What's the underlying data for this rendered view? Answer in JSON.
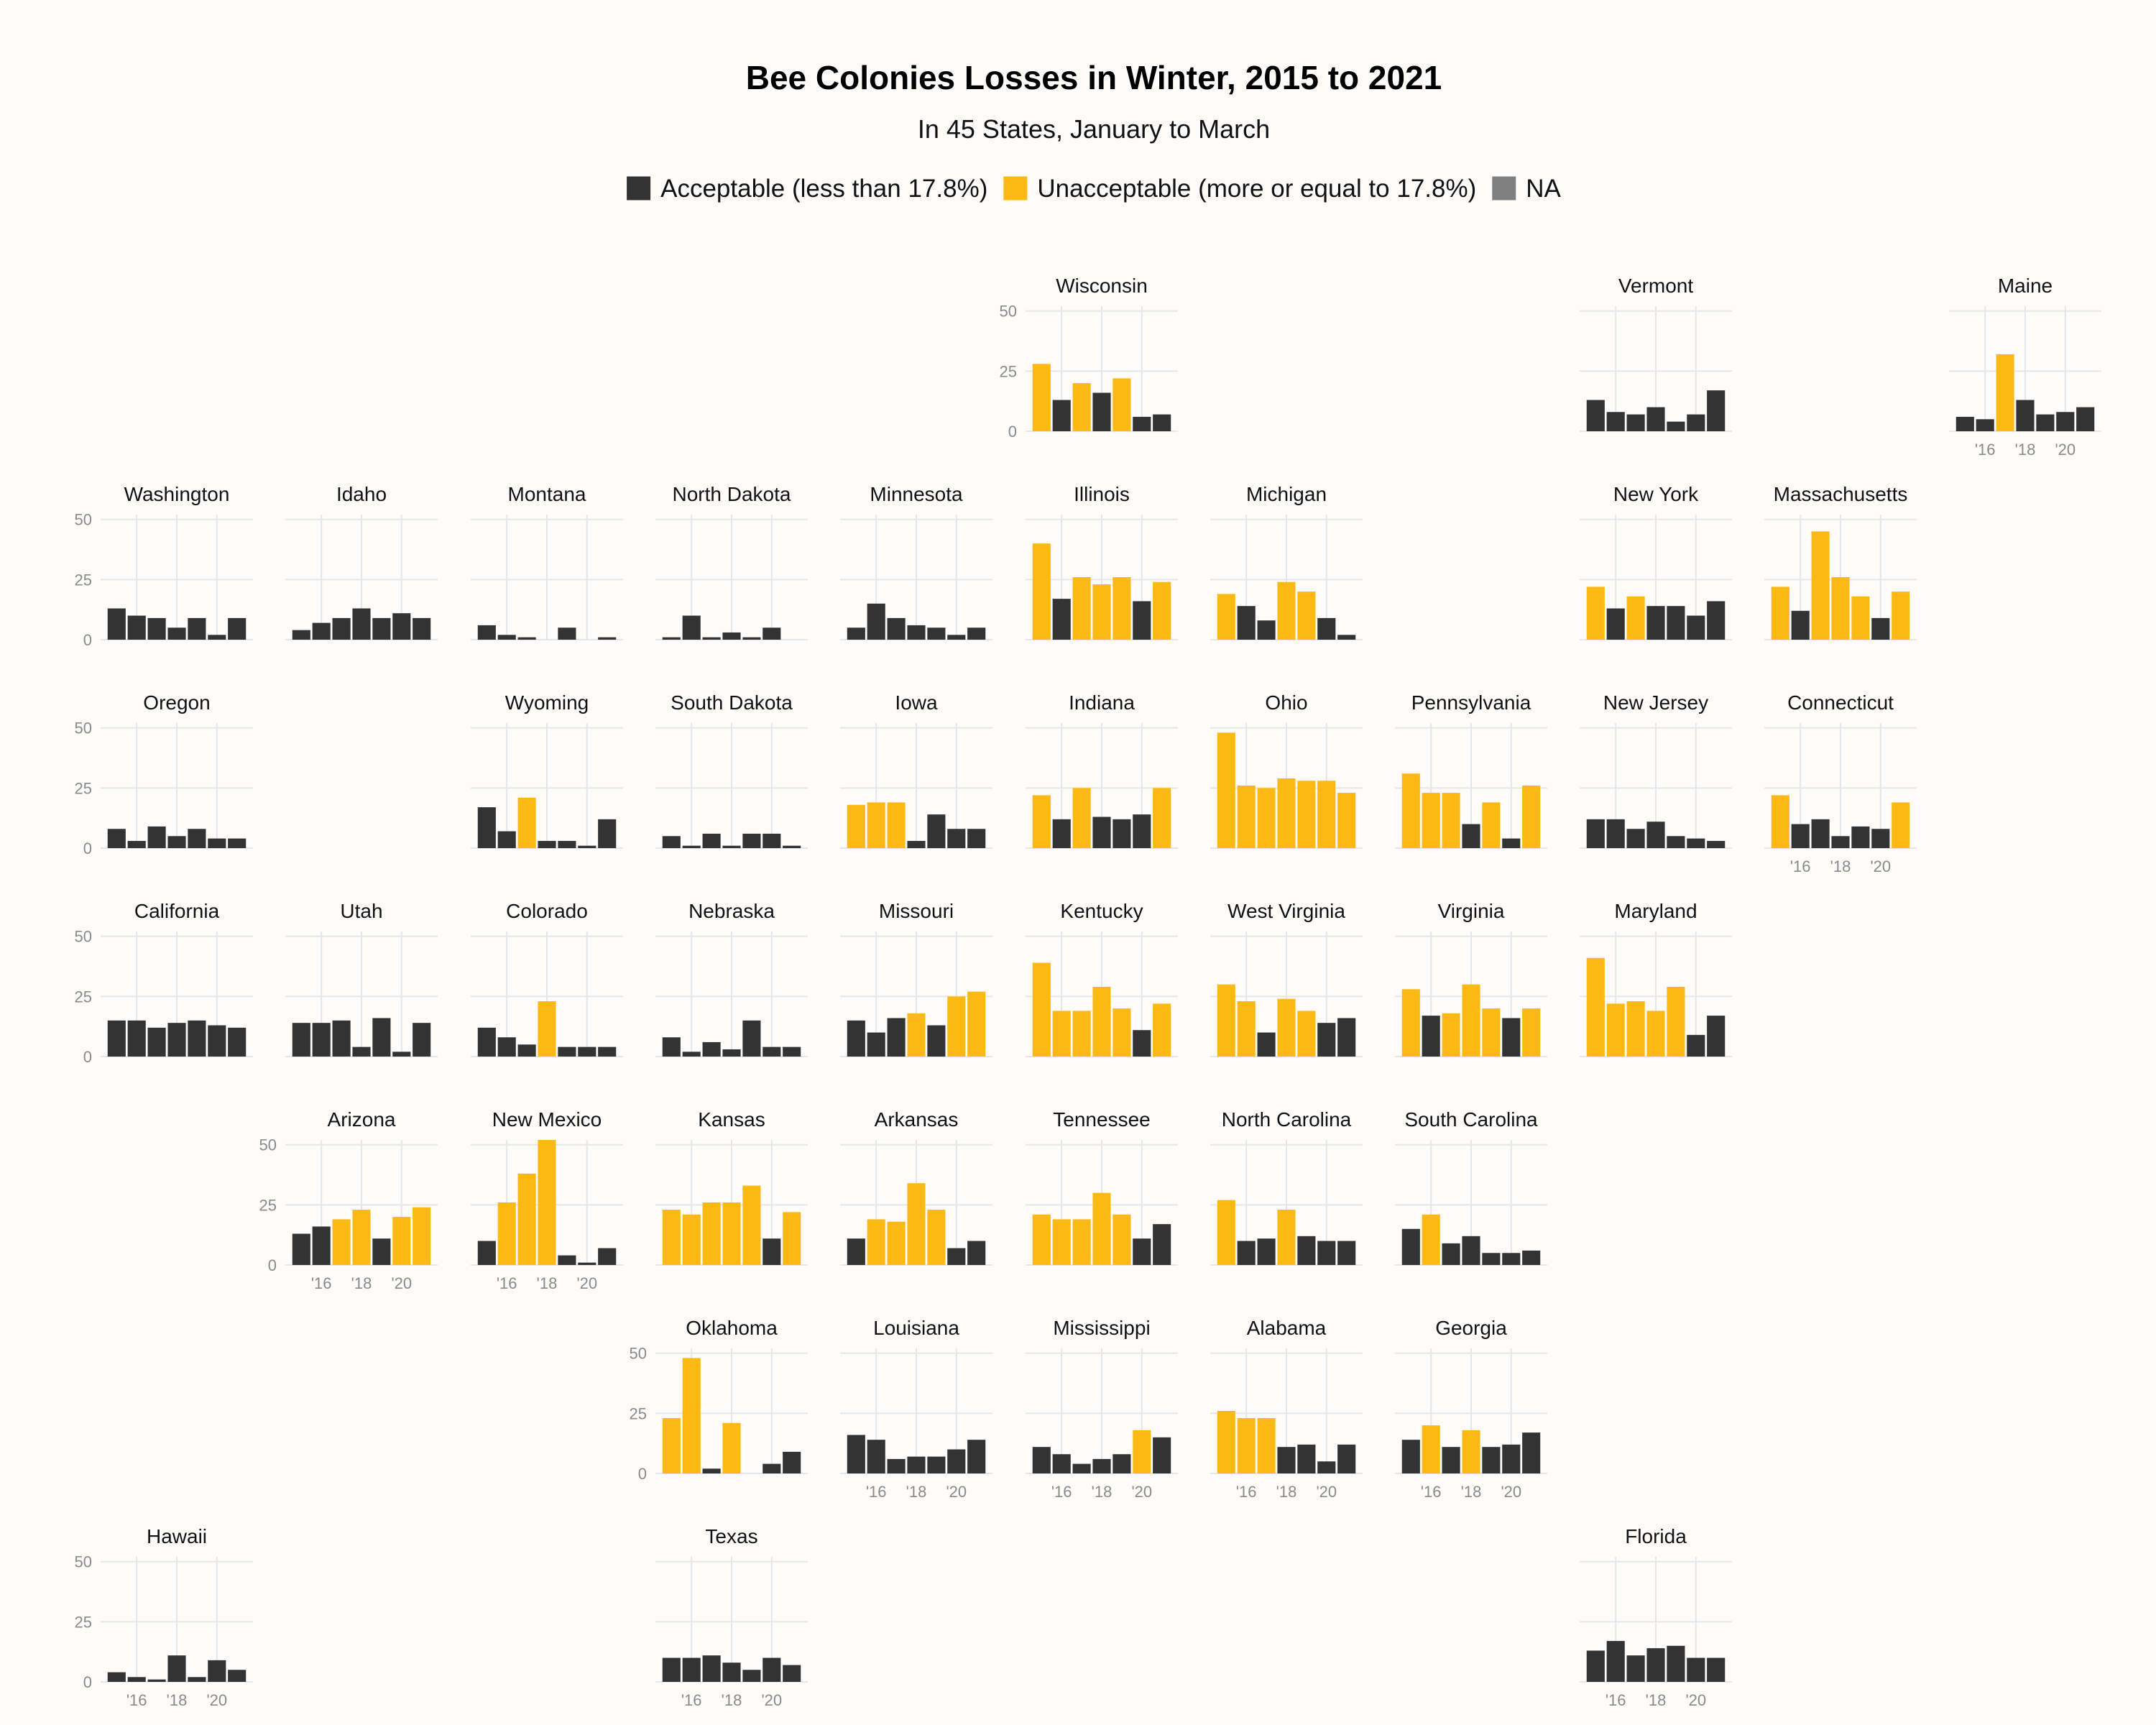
{
  "title": "Bee Colonies Losses in Winter, 2015 to 2021",
  "subtitle": "In 45 States, January to March",
  "legend": [
    {
      "label": "Acceptable (less than 17.8%)",
      "color": "#333333"
    },
    {
      "label": "Unacceptable (more or equal to 17.8%)",
      "color": "#FDB913"
    },
    {
      "label": "NA",
      "color": "#808080"
    }
  ],
  "chart_data": {
    "type": "bar",
    "threshold": 17.8,
    "years": [
      2015,
      2016,
      2017,
      2018,
      2019,
      2020,
      2021
    ],
    "x_tick_labels": [
      "'16",
      "'18",
      "'20"
    ],
    "y_ticks": [
      0,
      25,
      50
    ],
    "ylim": [
      0,
      52
    ],
    "colors": {
      "acceptable": "#333333",
      "unacceptable": "#FDB913",
      "na": "#808080"
    },
    "facets": [
      {
        "state": "Wisconsin",
        "row": 0,
        "col": 5,
        "values": [
          28,
          13,
          20,
          16,
          22,
          6,
          7
        ]
      },
      {
        "state": "Vermont",
        "row": 0,
        "col": 8,
        "values": [
          13,
          8,
          7,
          10,
          4,
          7,
          17
        ]
      },
      {
        "state": "Maine",
        "row": 0,
        "col": 10,
        "values": [
          6,
          5,
          32,
          13,
          7,
          8,
          10
        ]
      },
      {
        "state": "Washington",
        "row": 1,
        "col": 0,
        "values": [
          13,
          10,
          9,
          5,
          9,
          2,
          9
        ]
      },
      {
        "state": "Idaho",
        "row": 1,
        "col": 1,
        "values": [
          4,
          7,
          9,
          13,
          9,
          11,
          9
        ]
      },
      {
        "state": "Montana",
        "row": 1,
        "col": 2,
        "values": [
          6,
          2,
          1,
          null,
          5,
          null,
          1
        ]
      },
      {
        "state": "North Dakota",
        "row": 1,
        "col": 3,
        "values": [
          1,
          10,
          1,
          3,
          1,
          5,
          null
        ]
      },
      {
        "state": "Minnesota",
        "row": 1,
        "col": 4,
        "values": [
          5,
          15,
          9,
          6,
          5,
          2,
          5
        ]
      },
      {
        "state": "Illinois",
        "row": 1,
        "col": 5,
        "values": [
          40,
          17,
          26,
          23,
          26,
          16,
          24
        ]
      },
      {
        "state": "Michigan",
        "row": 1,
        "col": 6,
        "values": [
          19,
          14,
          8,
          24,
          20,
          9,
          2
        ]
      },
      {
        "state": "New York",
        "row": 1,
        "col": 8,
        "values": [
          22,
          13,
          18,
          14,
          14,
          10,
          16
        ]
      },
      {
        "state": "Massachusetts",
        "row": 1,
        "col": 9,
        "values": [
          22,
          12,
          45,
          26,
          18,
          9,
          20
        ]
      },
      {
        "state": "Oregon",
        "row": 2,
        "col": 0,
        "values": [
          8,
          3,
          9,
          5,
          8,
          4,
          4
        ]
      },
      {
        "state": "Wyoming",
        "row": 2,
        "col": 2,
        "values": [
          17,
          7,
          21,
          3,
          3,
          1,
          12
        ]
      },
      {
        "state": "South Dakota",
        "row": 2,
        "col": 3,
        "values": [
          5,
          1,
          6,
          1,
          6,
          6,
          1
        ]
      },
      {
        "state": "Iowa",
        "row": 2,
        "col": 4,
        "values": [
          18,
          19,
          19,
          3,
          14,
          8,
          8
        ]
      },
      {
        "state": "Indiana",
        "row": 2,
        "col": 5,
        "values": [
          22,
          12,
          25,
          13,
          12,
          14,
          25
        ]
      },
      {
        "state": "Ohio",
        "row": 2,
        "col": 6,
        "values": [
          48,
          26,
          25,
          29,
          28,
          28,
          23
        ]
      },
      {
        "state": "Pennsylvania",
        "row": 2,
        "col": 7,
        "values": [
          31,
          23,
          23,
          10,
          19,
          4,
          26
        ]
      },
      {
        "state": "New Jersey",
        "row": 2,
        "col": 8,
        "values": [
          12,
          12,
          8,
          11,
          5,
          4,
          3
        ]
      },
      {
        "state": "Connecticut",
        "row": 2,
        "col": 9,
        "values": [
          22,
          10,
          12,
          5,
          9,
          8,
          19
        ]
      },
      {
        "state": "California",
        "row": 3,
        "col": 0,
        "values": [
          15,
          15,
          12,
          14,
          15,
          13,
          12
        ]
      },
      {
        "state": "Utah",
        "row": 3,
        "col": 1,
        "values": [
          14,
          14,
          15,
          4,
          16,
          2,
          14
        ]
      },
      {
        "state": "Colorado",
        "row": 3,
        "col": 2,
        "values": [
          12,
          8,
          5,
          23,
          4,
          4,
          4
        ]
      },
      {
        "state": "Nebraska",
        "row": 3,
        "col": 3,
        "values": [
          8,
          2,
          6,
          3,
          15,
          4,
          4
        ]
      },
      {
        "state": "Missouri",
        "row": 3,
        "col": 4,
        "values": [
          15,
          10,
          16,
          18,
          13,
          25,
          27
        ]
      },
      {
        "state": "Kentucky",
        "row": 3,
        "col": 5,
        "values": [
          39,
          19,
          19,
          29,
          20,
          11,
          22
        ]
      },
      {
        "state": "West Virginia",
        "row": 3,
        "col": 6,
        "values": [
          30,
          23,
          10,
          24,
          19,
          14,
          16
        ]
      },
      {
        "state": "Virginia",
        "row": 3,
        "col": 7,
        "values": [
          28,
          17,
          18,
          30,
          20,
          16,
          20
        ]
      },
      {
        "state": "Maryland",
        "row": 3,
        "col": 8,
        "values": [
          41,
          22,
          23,
          19,
          29,
          9,
          17
        ]
      },
      {
        "state": "Arizona",
        "row": 4,
        "col": 1,
        "values": [
          13,
          16,
          19,
          23,
          11,
          20,
          24
        ]
      },
      {
        "state": "New Mexico",
        "row": 4,
        "col": 2,
        "values": [
          10,
          26,
          38,
          52,
          4,
          1,
          7
        ]
      },
      {
        "state": "Kansas",
        "row": 4,
        "col": 3,
        "values": [
          23,
          21,
          26,
          26,
          33,
          11,
          22
        ]
      },
      {
        "state": "Arkansas",
        "row": 4,
        "col": 4,
        "values": [
          11,
          19,
          18,
          34,
          23,
          7,
          10
        ]
      },
      {
        "state": "Tennessee",
        "row": 4,
        "col": 5,
        "values": [
          21,
          19,
          19,
          30,
          21,
          11,
          17
        ]
      },
      {
        "state": "North Carolina",
        "row": 4,
        "col": 6,
        "values": [
          27,
          10,
          11,
          23,
          12,
          10,
          10
        ]
      },
      {
        "state": "South Carolina",
        "row": 4,
        "col": 7,
        "values": [
          15,
          21,
          9,
          12,
          5,
          5,
          6
        ]
      },
      {
        "state": "Oklahoma",
        "row": 5,
        "col": 3,
        "values": [
          23,
          48,
          2,
          21,
          null,
          4,
          9
        ]
      },
      {
        "state": "Louisiana",
        "row": 5,
        "col": 4,
        "values": [
          16,
          14,
          6,
          7,
          7,
          10,
          14
        ]
      },
      {
        "state": "Mississippi",
        "row": 5,
        "col": 5,
        "values": [
          11,
          8,
          4,
          6,
          8,
          18,
          15
        ]
      },
      {
        "state": "Alabama",
        "row": 5,
        "col": 6,
        "values": [
          26,
          23,
          23,
          11,
          12,
          5,
          12
        ]
      },
      {
        "state": "Georgia",
        "row": 5,
        "col": 7,
        "values": [
          14,
          20,
          11,
          18,
          11,
          12,
          17
        ]
      },
      {
        "state": "Hawaii",
        "row": 6,
        "col": 0,
        "values": [
          4,
          2,
          1,
          11,
          2,
          9,
          5
        ]
      },
      {
        "state": "Texas",
        "row": 6,
        "col": 3,
        "values": [
          10,
          10,
          11,
          8,
          5,
          10,
          7
        ]
      },
      {
        "state": "Florida",
        "row": 6,
        "col": 8,
        "values": [
          13,
          17,
          11,
          14,
          15,
          10,
          10
        ]
      }
    ]
  }
}
